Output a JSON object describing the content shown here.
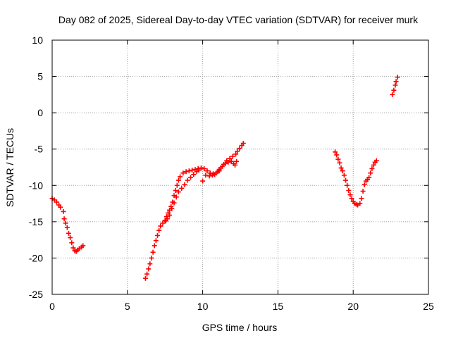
{
  "chart_data": {
    "type": "scatter",
    "title": "Day 082 of 2025, Sidereal Day-to-day VTEC variation (SDTVAR) for receiver murk",
    "xlabel": "GPS time / hours",
    "ylabel": "SDTVAR / TECUs",
    "xlim": [
      0,
      25
    ],
    "ylim": [
      -25,
      10
    ],
    "x_ticks": [
      0,
      5,
      10,
      15,
      20,
      25
    ],
    "y_ticks": [
      -25,
      -20,
      -15,
      -10,
      -5,
      0,
      5,
      10
    ],
    "grid": true,
    "marker": "+",
    "colors": {
      "series": "#ff0000",
      "axis": "#000000",
      "grid": "#a0a0a0",
      "background": "#ffffff"
    },
    "series": [
      {
        "points": [
          [
            0.0,
            -11.8
          ],
          [
            0.15,
            -12.0
          ],
          [
            0.3,
            -12.3
          ],
          [
            0.45,
            -12.7
          ],
          [
            0.55,
            -13.0
          ],
          [
            0.75,
            -13.6
          ],
          [
            0.8,
            -14.6
          ],
          [
            0.9,
            -15.2
          ],
          [
            1.0,
            -15.8
          ],
          [
            1.1,
            -16.6
          ],
          [
            1.2,
            -17.2
          ],
          [
            1.3,
            -17.9
          ],
          [
            1.4,
            -18.6
          ],
          [
            1.5,
            -19.0
          ],
          [
            1.6,
            -19.1
          ],
          [
            1.7,
            -18.9
          ],
          [
            1.8,
            -18.7
          ],
          [
            1.95,
            -18.5
          ],
          [
            2.05,
            -18.3
          ],
          [
            6.2,
            -22.8
          ],
          [
            6.3,
            -22.2
          ],
          [
            6.4,
            -21.5
          ],
          [
            6.5,
            -20.8
          ],
          [
            6.6,
            -20.0
          ],
          [
            6.7,
            -19.2
          ],
          [
            6.8,
            -18.3
          ],
          [
            6.9,
            -17.6
          ],
          [
            7.0,
            -16.9
          ],
          [
            7.1,
            -16.2
          ],
          [
            7.2,
            -15.6
          ],
          [
            7.35,
            -15.2
          ],
          [
            7.5,
            -14.8
          ],
          [
            7.6,
            -14.3
          ],
          [
            7.7,
            -13.8
          ],
          [
            7.8,
            -13.4
          ],
          [
            7.9,
            -12.9
          ],
          [
            8.0,
            -12.3
          ],
          [
            8.1,
            -11.4
          ],
          [
            8.2,
            -10.7
          ],
          [
            8.3,
            -10.0
          ],
          [
            8.4,
            -9.3
          ],
          [
            8.5,
            -8.8
          ],
          [
            8.7,
            -8.3
          ],
          [
            8.9,
            -8.1
          ],
          [
            9.1,
            -8.0
          ],
          [
            9.3,
            -7.9
          ],
          [
            9.5,
            -7.8
          ],
          [
            9.7,
            -7.7
          ],
          [
            9.9,
            -7.6
          ],
          [
            10.1,
            -7.7
          ],
          [
            10.3,
            -8.0
          ],
          [
            10.5,
            -8.3
          ],
          [
            10.7,
            -8.4
          ],
          [
            10.9,
            -8.3
          ],
          [
            11.1,
            -8.0
          ],
          [
            11.2,
            -7.6
          ],
          [
            11.4,
            -7.1
          ],
          [
            11.6,
            -6.6
          ],
          [
            11.8,
            -6.3
          ],
          [
            12.0,
            -6.0
          ],
          [
            12.2,
            -5.7
          ],
          [
            12.3,
            -5.3
          ],
          [
            12.45,
            -4.9
          ],
          [
            12.6,
            -4.5
          ],
          [
            12.7,
            -4.2
          ],
          [
            7.55,
            -14.9
          ],
          [
            7.65,
            -14.6
          ],
          [
            7.8,
            -14.1
          ],
          [
            7.95,
            -13.2
          ],
          [
            8.1,
            -12.4
          ],
          [
            8.25,
            -11.6
          ],
          [
            8.4,
            -10.9
          ],
          [
            8.6,
            -10.4
          ],
          [
            8.8,
            -9.9
          ],
          [
            9.0,
            -9.3
          ],
          [
            9.2,
            -8.9
          ],
          [
            9.4,
            -8.5
          ],
          [
            9.6,
            -8.1
          ],
          [
            9.75,
            -7.9
          ],
          [
            10.0,
            -9.4
          ],
          [
            10.2,
            -8.6
          ],
          [
            10.45,
            -8.7
          ],
          [
            10.65,
            -8.6
          ],
          [
            10.8,
            -8.5
          ],
          [
            11.0,
            -8.1
          ],
          [
            11.1,
            -7.8
          ],
          [
            11.3,
            -7.4
          ],
          [
            11.5,
            -7.0
          ],
          [
            11.7,
            -6.8
          ],
          [
            11.9,
            -6.7
          ],
          [
            12.05,
            -7.0
          ],
          [
            12.15,
            -7.2
          ],
          [
            12.25,
            -6.7
          ],
          [
            18.8,
            -5.4
          ],
          [
            18.9,
            -5.8
          ],
          [
            19.0,
            -6.4
          ],
          [
            19.1,
            -6.9
          ],
          [
            19.2,
            -7.6
          ],
          [
            19.3,
            -8.0
          ],
          [
            19.4,
            -8.6
          ],
          [
            19.5,
            -9.3
          ],
          [
            19.6,
            -10.0
          ],
          [
            19.7,
            -10.7
          ],
          [
            19.8,
            -11.3
          ],
          [
            19.9,
            -11.8
          ],
          [
            20.0,
            -12.2
          ],
          [
            20.1,
            -12.5
          ],
          [
            20.2,
            -12.6
          ],
          [
            20.3,
            -12.7
          ],
          [
            20.45,
            -12.5
          ],
          [
            20.55,
            -11.8
          ],
          [
            20.65,
            -10.8
          ],
          [
            20.75,
            -9.9
          ],
          [
            20.85,
            -9.4
          ],
          [
            20.95,
            -9.2
          ],
          [
            21.05,
            -8.9
          ],
          [
            21.15,
            -8.3
          ],
          [
            21.25,
            -7.7
          ],
          [
            21.35,
            -7.2
          ],
          [
            21.45,
            -6.8
          ],
          [
            21.55,
            -6.6
          ],
          [
            22.6,
            2.5
          ],
          [
            22.7,
            3.1
          ],
          [
            22.8,
            3.8
          ],
          [
            22.85,
            4.3
          ],
          [
            22.95,
            4.9
          ]
        ]
      }
    ]
  }
}
